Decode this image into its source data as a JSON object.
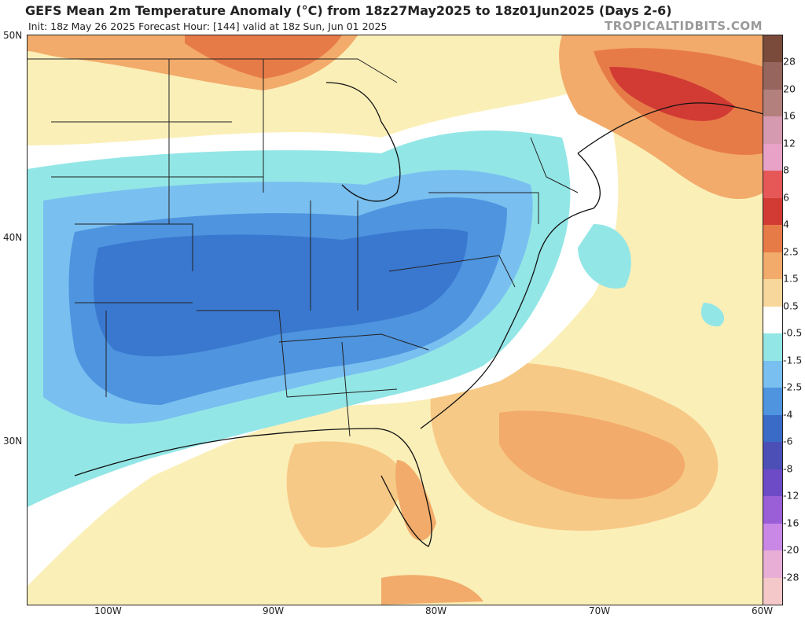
{
  "header": {
    "title": "GEFS Mean 2m Temperature Anomaly (°C) from 18z27May2025 to 18z01Jun2025 (Days 2-6)",
    "subtitle": "Init: 18z May 26 2025   Forecast Hour: [144]   valid at 18z Sun, Jun 01 2025",
    "brand": "TROPICALTIDBITS.COM"
  },
  "map": {
    "lat_labels": [
      "50N",
      "40N",
      "30N"
    ],
    "lon_labels": [
      "100W",
      "90W",
      "80W",
      "70W",
      "60W"
    ]
  },
  "colorbar": {
    "labels": [
      "28",
      "20",
      "16",
      "12",
      "8",
      "6",
      "4",
      "2.5",
      "1.5",
      "0.5",
      "-0.5",
      "-1.5",
      "-2.5",
      "-4",
      "-6",
      "-8",
      "-12",
      "-16",
      "-20",
      "-28"
    ],
    "colors": [
      "#7a4a3a",
      "#96655d",
      "#b3807e",
      "#d69ab0",
      "#e8a2c8",
      "#e65858",
      "#d13b34",
      "#e77b48",
      "#f2ab6a",
      "#f8d79c",
      "#ffffff",
      "#93e6e6",
      "#79bff0",
      "#4e94df",
      "#3a6cc7",
      "#4b4fb6",
      "#6e4bc6",
      "#9a5fd6",
      "#c988e6",
      "#e8aed6",
      "#f4c8c8"
    ]
  }
}
